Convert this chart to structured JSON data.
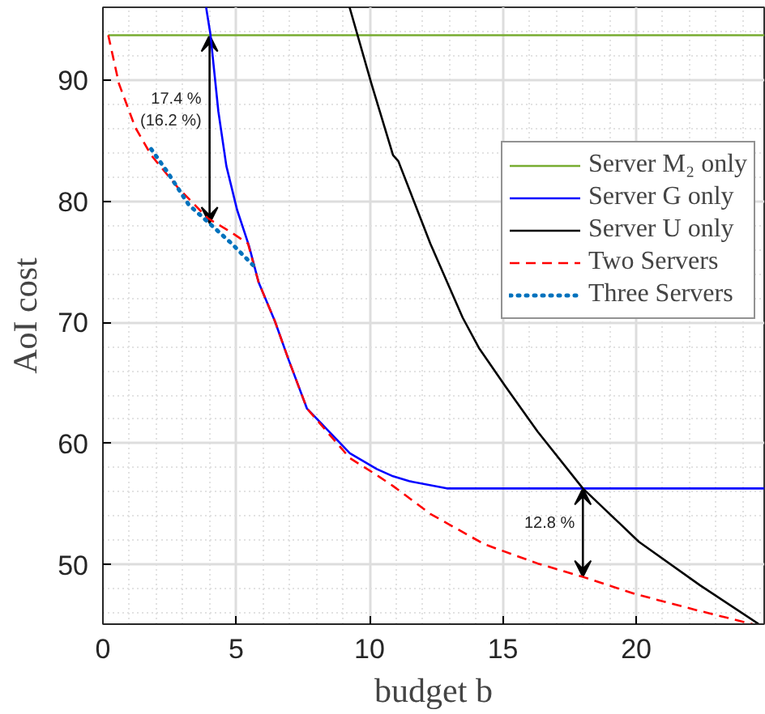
{
  "chart_data": {
    "type": "line",
    "xlabel": "budget b",
    "ylabel": "AoI cost",
    "xlim": [
      0,
      24.8
    ],
    "ylim": [
      45.1,
      96
    ],
    "xticks": [
      0,
      5,
      10,
      15,
      20
    ],
    "yticks": [
      50,
      60,
      70,
      80,
      90
    ],
    "grid": true,
    "legend": "top right",
    "marker": "none",
    "series": [
      {
        "name": "Server M₂ only",
        "color": "#77ac30",
        "line_style": "solid",
        "x": [
          0.2,
          24.8
        ],
        "values": [
          93.7,
          93.7
        ]
      },
      {
        "name": "Server G only",
        "color": "#0000ff",
        "line_style": "solid",
        "x": [
          3.87,
          4.03,
          4.33,
          4.63,
          5.03,
          5.48,
          5.84,
          6.45,
          6.95,
          7.65,
          9.26,
          10.27,
          10.88,
          11.48,
          12.9,
          24.8
        ],
        "values": [
          96,
          93.8,
          87.4,
          82.9,
          79.3,
          76.3,
          73.3,
          70.1,
          67.0,
          62.9,
          59.2,
          57.9,
          57.3,
          56.9,
          56.3,
          56.3
        ]
      },
      {
        "name": "Server U only",
        "color": "#000000",
        "line_style": "solid",
        "x": [
          9.25,
          10.07,
          10.88,
          11.08,
          12.28,
          13.49,
          14.1,
          15.1,
          16.3,
          18.0,
          20.1,
          22.4,
          24.6
        ],
        "values": [
          96,
          89.7,
          83.8,
          83.3,
          76.5,
          70.4,
          67.9,
          64.7,
          61.0,
          56.3,
          51.9,
          48.3,
          45.1
        ]
      },
      {
        "name": "Two Servers",
        "color": "#ff0000",
        "line_style": "dashed",
        "x": [
          0.2,
          0.6,
          1.21,
          1.81,
          2.82,
          3.93,
          4.83,
          5.44,
          5.84,
          6.45,
          6.95,
          7.65,
          9.26,
          10.27,
          10.88,
          12.28,
          14.3,
          16.31,
          18.0,
          19.94,
          22.36,
          24.37
        ],
        "values": [
          93.7,
          89.7,
          86.1,
          83.8,
          81.1,
          78.6,
          77.4,
          76.5,
          73.3,
          70.1,
          67.0,
          62.9,
          58.8,
          57.4,
          56.5,
          54.2,
          51.7,
          50.1,
          49.0,
          47.6,
          46.2,
          45.1
        ]
      },
      {
        "name": "Three Servers",
        "color": "#0072bd",
        "line_style": "dotted",
        "x": [
          1.81,
          2.42,
          3.22,
          3.93,
          4.83,
          5.64
        ],
        "values": [
          84.3,
          82.4,
          79.7,
          78.3,
          76.5,
          74.7
        ]
      }
    ],
    "annotations": [
      {
        "text": "17.4 %\n(16.2 %)",
        "x": 4,
        "y": 93.7
      },
      {
        "text": "12.8 %",
        "x": 18,
        "y": 56.3
      }
    ]
  }
}
